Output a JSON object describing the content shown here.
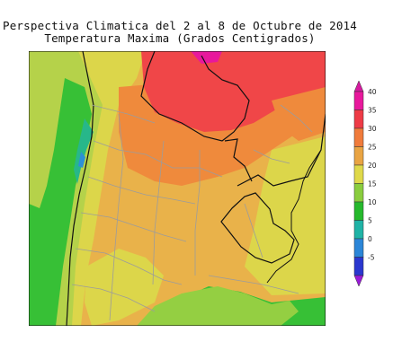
{
  "map": {
    "title": "Perspectiva Climatica del 2 al 8 de Octubre de 2014",
    "subtitle": "Temperatura Maxima (Grados Centigrados)"
  },
  "legend": {
    "levels": [
      {
        "label": "40",
        "color": "#e8189c"
      },
      {
        "label": "35",
        "color": "#ee3b46"
      },
      {
        "label": "30",
        "color": "#f07b3b"
      },
      {
        "label": "25",
        "color": "#e9a443"
      },
      {
        "label": "20",
        "color": "#dfd94a"
      },
      {
        "label": "15",
        "color": "#8acd3e"
      },
      {
        "label": "10",
        "color": "#25b92c"
      },
      {
        "label": "5",
        "color": "#1fb3a6"
      },
      {
        "label": "0",
        "color": "#2b86d8"
      },
      {
        "label": "-5",
        "color": "#2a37cf"
      }
    ],
    "top_color": "#d61aa0",
    "bottom_color": "#9a1ad9"
  }
}
